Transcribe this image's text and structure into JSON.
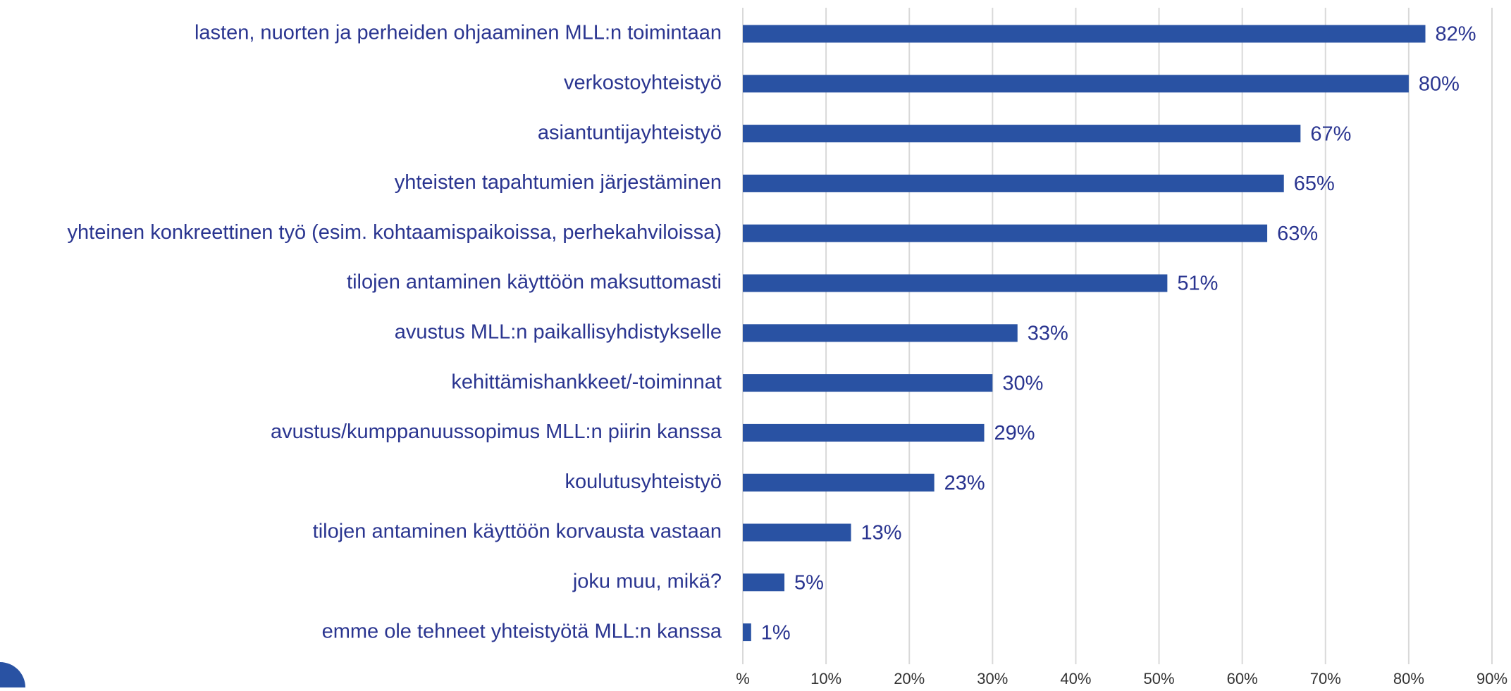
{
  "chart_data": {
    "type": "bar",
    "orientation": "horizontal",
    "categories": [
      "lasten, nuorten ja perheiden ohjaaminen MLL:n toimintaan",
      "verkostoyhteistyö",
      "asiantuntijayhteistyö",
      "yhteisten tapahtumien järjestäminen",
      "yhteinen konkreettinen työ (esim. kohtaamispaikoissa, perhekahviloissa)",
      "tilojen antaminen käyttöön maksuttomasti",
      "avustus MLL:n paikallisyhdistykselle",
      "kehittämishankkeet/-toiminnat",
      "avustus/kumppanuussopimus MLL:n piirin kanssa",
      "koulutusyhteistyö",
      "tilojen antaminen käyttöön korvausta vastaan",
      "joku muu, mikä?",
      "emme ole tehneet yhteistyötä MLL:n kanssa"
    ],
    "values": [
      82,
      80,
      67,
      65,
      63,
      51,
      33,
      30,
      29,
      23,
      13,
      5,
      1
    ],
    "value_labels": [
      "82%",
      "80%",
      "67%",
      "65%",
      "63%",
      "51%",
      "33%",
      "30%",
      "29%",
      "23%",
      "13%",
      "5%",
      "1%"
    ],
    "color": "#2952a3",
    "xlim": [
      0,
      90
    ],
    "xticks": [
      {
        "value": 0,
        "label": "%"
      },
      {
        "value": 10,
        "label": "10%"
      },
      {
        "value": 20,
        "label": "20%"
      },
      {
        "value": 30,
        "label": "30%"
      },
      {
        "value": 40,
        "label": "40%"
      },
      {
        "value": 50,
        "label": "50%"
      },
      {
        "value": 60,
        "label": "60%"
      },
      {
        "value": 70,
        "label": "70%"
      },
      {
        "value": 80,
        "label": "80%"
      },
      {
        "value": 90,
        "label": "90%"
      }
    ],
    "grid": true
  }
}
